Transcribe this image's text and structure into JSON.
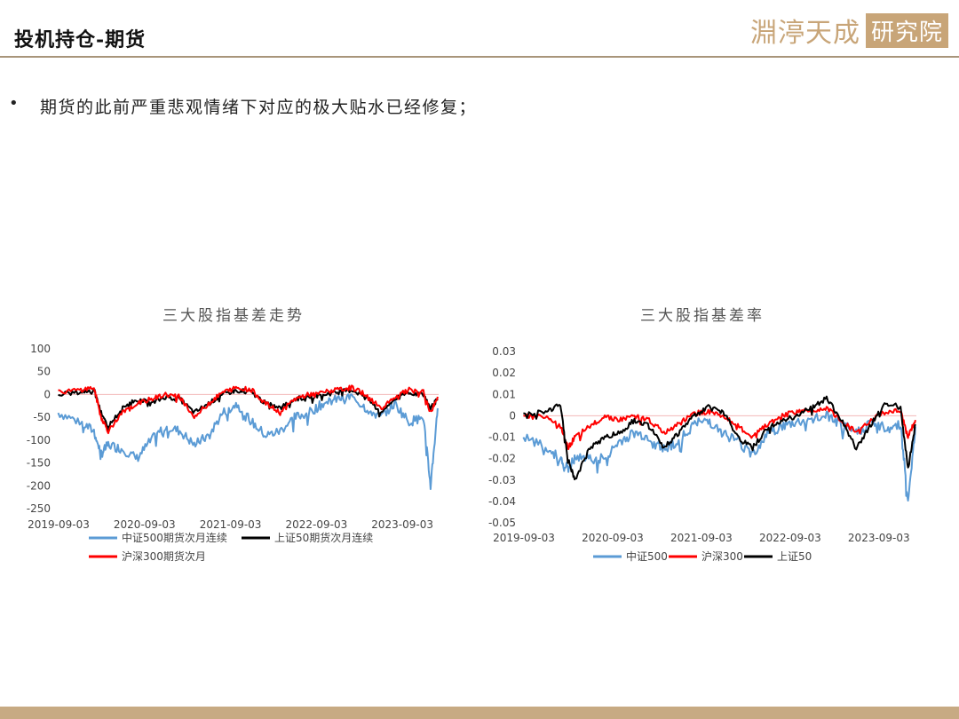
{
  "header": {
    "title": "投机持仓-期货",
    "logo_script": "淵渟天成",
    "logo_box": "研究院"
  },
  "bullet": {
    "symbol": "•",
    "text": "期货的此前严重悲观情绪下对应的极大贴水已经修复；"
  },
  "colors": {
    "blue": "#5b9bd5",
    "black": "#000000",
    "red": "#ff0000",
    "gold": "#c8a578"
  },
  "chart_data": [
    {
      "type": "line",
      "title": "三大股指基差走势",
      "y_ticks": [
        "100",
        "50",
        "0",
        "-50",
        "-100",
        "-150",
        "-200",
        "-250"
      ],
      "ylim": [
        -250,
        100
      ],
      "x_ticks": [
        "2019-09-03",
        "2020-09-03",
        "2021-09-03",
        "2022-09-03",
        "2023-09-03"
      ],
      "xlim": [
        "2019-09-03",
        "2024-02-05"
      ],
      "legend": [
        "中证500期货次月连续",
        "上证50期货次月连续",
        "沪深300期货次月"
      ],
      "series": [
        {
          "name": "中证500期货次月连续",
          "color": "#5b9bd5",
          "x": [
            "2019-09",
            "2019-12",
            "2020-02",
            "2020-03",
            "2020-04",
            "2020-06",
            "2020-08",
            "2020-10",
            "2020-12",
            "2021-02",
            "2021-04",
            "2021-06",
            "2021-08",
            "2021-10",
            "2021-12",
            "2022-02",
            "2022-04",
            "2022-06",
            "2022-08",
            "2022-10",
            "2022-12",
            "2023-02",
            "2023-04",
            "2023-06",
            "2023-08",
            "2023-10",
            "2023-12",
            "2024-01",
            "2024-02"
          ],
          "values": [
            -40,
            -60,
            -80,
            -130,
            -110,
            -120,
            -140,
            -100,
            -70,
            -80,
            -110,
            -90,
            -40,
            -20,
            -60,
            -90,
            -80,
            -50,
            -40,
            -20,
            -10,
            -5,
            -30,
            -50,
            -20,
            -60,
            -50,
            -200,
            -30
          ]
        },
        {
          "name": "上证50期货次月连续",
          "color": "#000000",
          "x": [
            "2019-09",
            "2019-12",
            "2020-02",
            "2020-03",
            "2020-04",
            "2020-06",
            "2020-08",
            "2020-10",
            "2020-12",
            "2021-02",
            "2021-04",
            "2021-06",
            "2021-08",
            "2021-10",
            "2021-12",
            "2022-02",
            "2022-04",
            "2022-06",
            "2022-08",
            "2022-10",
            "2022-12",
            "2023-02",
            "2023-04",
            "2023-06",
            "2023-08",
            "2023-10",
            "2023-12",
            "2024-01",
            "2024-02"
          ],
          "values": [
            0,
            5,
            10,
            -40,
            -70,
            -30,
            -10,
            -20,
            -5,
            -10,
            -40,
            -20,
            0,
            10,
            5,
            -20,
            -30,
            -10,
            -5,
            0,
            5,
            10,
            -5,
            -40,
            -10,
            5,
            0,
            -30,
            -10
          ]
        },
        {
          "name": "沪深300期货次月",
          "color": "#ff0000",
          "x": [
            "2019-09",
            "2019-12",
            "2020-02",
            "2020-03",
            "2020-04",
            "2020-06",
            "2020-08",
            "2020-10",
            "2020-12",
            "2021-02",
            "2021-04",
            "2021-06",
            "2021-08",
            "2021-10",
            "2021-12",
            "2022-02",
            "2022-04",
            "2022-06",
            "2022-08",
            "2022-10",
            "2022-12",
            "2023-02",
            "2023-04",
            "2023-06",
            "2023-08",
            "2023-10",
            "2023-12",
            "2024-01",
            "2024-02"
          ],
          "values": [
            5,
            10,
            15,
            -50,
            -80,
            -40,
            -20,
            -10,
            0,
            -5,
            -50,
            -20,
            5,
            15,
            10,
            -20,
            -40,
            -10,
            0,
            5,
            10,
            15,
            0,
            -30,
            -5,
            10,
            5,
            -40,
            -5
          ]
        }
      ]
    },
    {
      "type": "line",
      "title": "三大股指基差率",
      "y_ticks": [
        "0.03",
        "0.02",
        "0.01",
        "0",
        "-0.01",
        "-0.02",
        "-0.03",
        "-0.04",
        "-0.05"
      ],
      "ylim": [
        -0.05,
        0.03
      ],
      "x_ticks": [
        "2019-09-03",
        "2020-09-03",
        "2021-09-03",
        "2022-09-03",
        "2023-09-03"
      ],
      "xlim": [
        "2019-09-03",
        "2024-02-05"
      ],
      "legend": [
        "中证500",
        "沪深300",
        "上证50"
      ],
      "series": [
        {
          "name": "中证500",
          "color": "#5b9bd5",
          "x": [
            "2019-09",
            "2019-12",
            "2020-02",
            "2020-03",
            "2020-04",
            "2020-06",
            "2020-08",
            "2020-10",
            "2020-12",
            "2021-02",
            "2021-04",
            "2021-06",
            "2021-08",
            "2021-10",
            "2021-12",
            "2022-02",
            "2022-04",
            "2022-06",
            "2022-08",
            "2022-10",
            "2022-12",
            "2023-02",
            "2023-04",
            "2023-06",
            "2023-08",
            "2023-10",
            "2023-12",
            "2024-01",
            "2024-02"
          ],
          "values": [
            -0.01,
            -0.015,
            -0.02,
            -0.025,
            -0.02,
            -0.02,
            -0.02,
            -0.012,
            -0.008,
            -0.01,
            -0.015,
            -0.012,
            -0.004,
            -0.002,
            -0.008,
            -0.012,
            -0.018,
            -0.008,
            -0.005,
            -0.003,
            -0.002,
            0.0,
            -0.004,
            -0.008,
            -0.003,
            -0.006,
            -0.004,
            -0.04,
            -0.005
          ]
        },
        {
          "name": "沪深300",
          "color": "#ff0000",
          "x": [
            "2019-09",
            "2019-12",
            "2020-02",
            "2020-03",
            "2020-04",
            "2020-06",
            "2020-08",
            "2020-10",
            "2020-12",
            "2021-02",
            "2021-04",
            "2021-06",
            "2021-08",
            "2021-10",
            "2021-12",
            "2022-02",
            "2022-04",
            "2022-06",
            "2022-08",
            "2022-10",
            "2022-12",
            "2023-02",
            "2023-04",
            "2023-06",
            "2023-08",
            "2023-10",
            "2023-12",
            "2024-01",
            "2024-02"
          ],
          "values": [
            0.0,
            0.0,
            -0.005,
            -0.015,
            -0.01,
            -0.005,
            0.0,
            -0.002,
            0.0,
            -0.002,
            -0.008,
            -0.004,
            0.001,
            0.002,
            0.0,
            -0.005,
            -0.01,
            -0.004,
            0.0,
            0.002,
            0.002,
            0.004,
            -0.002,
            -0.008,
            -0.002,
            0.002,
            0.002,
            -0.01,
            -0.002
          ]
        },
        {
          "name": "上证50",
          "color": "#000000",
          "x": [
            "2019-09",
            "2019-12",
            "2020-02",
            "2020-03",
            "2020-04",
            "2020-06",
            "2020-08",
            "2020-10",
            "2020-12",
            "2021-02",
            "2021-04",
            "2021-06",
            "2021-08",
            "2021-10",
            "2021-12",
            "2022-02",
            "2022-04",
            "2022-06",
            "2022-08",
            "2022-10",
            "2022-12",
            "2023-02",
            "2023-04",
            "2023-06",
            "2023-08",
            "2023-10",
            "2023-12",
            "2024-01",
            "2024-02"
          ],
          "values": [
            0.0,
            0.002,
            0.005,
            -0.02,
            -0.03,
            -0.015,
            -0.01,
            -0.008,
            -0.002,
            -0.005,
            -0.015,
            -0.008,
            0.0,
            0.004,
            0.002,
            -0.01,
            -0.015,
            -0.006,
            -0.002,
            0.0,
            0.004,
            0.008,
            -0.002,
            -0.015,
            -0.004,
            0.006,
            0.004,
            -0.025,
            -0.004
          ]
        }
      ]
    }
  ]
}
